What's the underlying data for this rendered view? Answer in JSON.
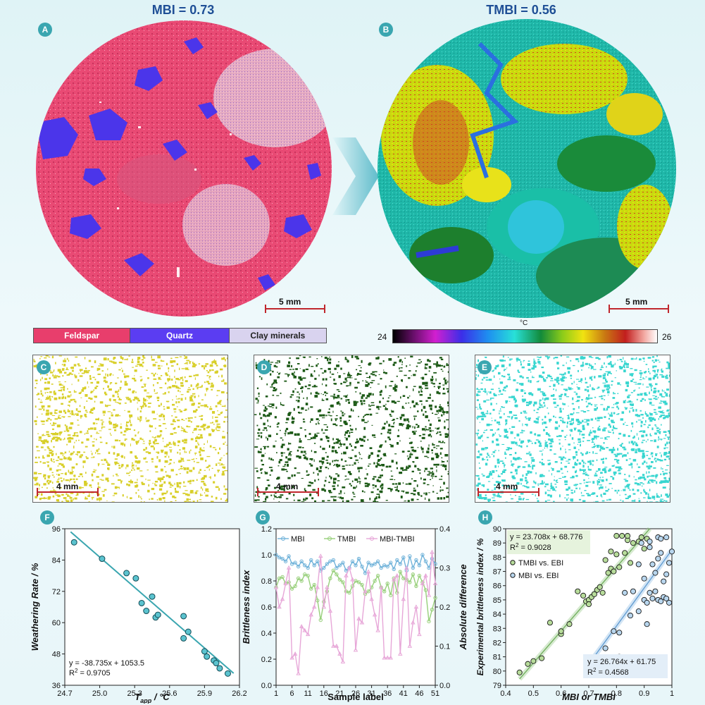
{
  "panelA": {
    "letter": "A",
    "title": "MBI = 0.73",
    "scale": "5 mm"
  },
  "panelB": {
    "letter": "B",
    "title": "TMBI = 0.56",
    "scale": "5 mm",
    "colorbar": {
      "unit": "°C",
      "min": "24",
      "max": "26"
    }
  },
  "legend": {
    "feldspar": "Feldspar",
    "quartz": "Quartz",
    "clay": "Clay minerals",
    "colors": {
      "feldspar": "#e83e6c",
      "quartz": "#5b3df2",
      "clay": "#d9d3ef"
    }
  },
  "panelC": {
    "letter": "C",
    "scale": "4 mm",
    "color": "#d8cf2a"
  },
  "panelD": {
    "letter": "D",
    "scale": "4 mm",
    "color": "#1d5a17"
  },
  "panelE": {
    "letter": "E",
    "scale": "4 mm",
    "color": "#39d6d0"
  },
  "panelF": {
    "letter": "F"
  },
  "panelG": {
    "letter": "G"
  },
  "panelH": {
    "letter": "H"
  },
  "chart_data": [
    {
      "id": "F",
      "type": "scatter",
      "xlabel": "T_app / °C",
      "ylabel": "Weathering Rate / %",
      "xlim": [
        24.7,
        26.2
      ],
      "ylim": [
        36,
        96
      ],
      "xticks": [
        "24.7",
        "25.0",
        "25.3",
        "25.6",
        "25.9",
        "26.2"
      ],
      "yticks": [
        "36",
        "48",
        "60",
        "72",
        "84",
        "96"
      ],
      "equation": "y = -38.735x + 1053.5",
      "r2_label": "R",
      "r2_value": "= 0.9705",
      "fit": {
        "slope": -38.735,
        "intercept": 1053.5
      },
      "points": [
        [
          24.78,
          90.8
        ],
        [
          25.02,
          84.5
        ],
        [
          25.23,
          79
        ],
        [
          25.31,
          77
        ],
        [
          25.36,
          67.5
        ],
        [
          25.4,
          64.5
        ],
        [
          25.45,
          70
        ],
        [
          25.48,
          62
        ],
        [
          25.5,
          63
        ],
        [
          25.72,
          62.5
        ],
        [
          25.72,
          54
        ],
        [
          25.76,
          56.5
        ],
        [
          25.9,
          49
        ],
        [
          25.92,
          47
        ],
        [
          25.98,
          45.5
        ],
        [
          26.0,
          44.5
        ],
        [
          26.03,
          42.5
        ],
        [
          26.1,
          40.5
        ]
      ]
    },
    {
      "id": "G",
      "type": "line",
      "xlabel": "Sample label",
      "ylabel": "Brittleness index",
      "y2label": "Absolute difference",
      "xlim": [
        1,
        51
      ],
      "ylim": [
        0,
        1.2
      ],
      "y2lim": [
        0,
        0.4
      ],
      "xticks": [
        "1",
        "6",
        "11",
        "16",
        "21",
        "26",
        "31",
        "36",
        "41",
        "46",
        "51"
      ],
      "yticks": [
        "0.0",
        "0.2",
        "0.4",
        "0.6",
        "0.8",
        "1.0",
        "1.2"
      ],
      "y2ticks": [
        "0.0",
        "0.1",
        "0.2",
        "0.3",
        "0.4"
      ],
      "series": [
        {
          "name": "MBI",
          "color": "#6fb2d9",
          "axis": "left",
          "values": [
            1.0,
            0.98,
            0.97,
            0.95,
            0.99,
            0.93,
            0.94,
            0.91,
            0.95,
            0.92,
            0.9,
            0.96,
            0.92,
            0.95,
            0.88,
            0.9,
            0.93,
            0.95,
            0.96,
            0.9,
            0.92,
            0.94,
            0.88,
            0.9,
            0.95,
            0.92,
            0.97,
            0.91,
            0.86,
            0.94,
            0.92,
            0.93,
            0.95,
            0.9,
            0.92,
            0.91,
            0.94,
            0.89,
            0.96,
            0.93,
            0.98,
            0.88,
            0.99,
            0.9,
            0.96,
            0.92,
            1.0,
            0.95,
            0.9,
            0.97,
            0.93
          ]
        },
        {
          "name": "TMBI",
          "color": "#97cf7a",
          "axis": "left",
          "values": [
            0.75,
            0.82,
            0.83,
            0.78,
            0.79,
            0.74,
            0.76,
            0.82,
            0.8,
            0.85,
            0.84,
            0.74,
            0.77,
            0.65,
            0.5,
            0.64,
            0.72,
            0.82,
            0.88,
            0.85,
            0.81,
            0.79,
            0.72,
            0.71,
            0.76,
            0.8,
            0.79,
            0.77,
            0.7,
            0.72,
            0.75,
            0.8,
            0.84,
            0.75,
            0.72,
            0.78,
            0.69,
            0.82,
            0.71,
            0.87,
            0.82,
            0.81,
            0.79,
            0.85,
            0.76,
            0.84,
            0.79,
            0.73,
            0.49,
            0.58,
            0.67
          ]
        },
        {
          "name": "MBI-TMBI",
          "color": "#e7a7d8",
          "axis": "right",
          "values": [
            0.25,
            0.2,
            0.22,
            0.26,
            0.3,
            0.07,
            0.08,
            0.03,
            0.15,
            0.14,
            0.13,
            0.18,
            0.2,
            0.25,
            0.33,
            0.2,
            0.25,
            0.19,
            0.1,
            0.1,
            0.08,
            0.06,
            0.28,
            0.3,
            0.27,
            0.09,
            0.17,
            0.16,
            0.24,
            0.29,
            0.22,
            0.18,
            0.14,
            0.25,
            0.07,
            0.07,
            0.07,
            0.27,
            0.28,
            0.08,
            0.22,
            0.3,
            0.1,
            0.16,
            0.2,
            0.13,
            0.26,
            0.28,
            0.23,
            0.34,
            0.26
          ]
        }
      ]
    },
    {
      "id": "H",
      "type": "scatter",
      "xlabel": "MBI or TMBI",
      "ylabel": "Experimental brittleness index / %",
      "xlim": [
        0.4,
        1.0
      ],
      "ylim": [
        79,
        90
      ],
      "xticks": [
        "0.4",
        "0.5",
        "0.6",
        "0.7",
        "0.8",
        "0.9",
        "1"
      ],
      "yticks": [
        "79",
        "80",
        "81",
        "82",
        "83",
        "84",
        "85",
        "86",
        "87",
        "88",
        "89",
        "90"
      ],
      "series": [
        {
          "name": "TMBI vs. EBI",
          "fill": "#b7dc9a",
          "equation": "y = 23.708x + 68.776",
          "r2": "= 0.9028",
          "fit": {
            "slope": 23.708,
            "intercept": 68.776
          },
          "points": [
            [
              0.45,
              79.9
            ],
            [
              0.48,
              80.5
            ],
            [
              0.5,
              80.7
            ],
            [
              0.53,
              80.9
            ],
            [
              0.56,
              83.4
            ],
            [
              0.6,
              82.6
            ],
            [
              0.6,
              82.8
            ],
            [
              0.63,
              83.3
            ],
            [
              0.66,
              85.6
            ],
            [
              0.68,
              85.3
            ],
            [
              0.69,
              84.9
            ],
            [
              0.7,
              85
            ],
            [
              0.7,
              84.7
            ],
            [
              0.71,
              85.2
            ],
            [
              0.72,
              85.4
            ],
            [
              0.73,
              85.7
            ],
            [
              0.74,
              85.9
            ],
            [
              0.75,
              85.5
            ],
            [
              0.76,
              87.8
            ],
            [
              0.77,
              86.9
            ],
            [
              0.78,
              87.2
            ],
            [
              0.78,
              88.4
            ],
            [
              0.79,
              87
            ],
            [
              0.8,
              89.5
            ],
            [
              0.8,
              88.2
            ],
            [
              0.81,
              87.3
            ],
            [
              0.82,
              89.5
            ],
            [
              0.83,
              88.3
            ],
            [
              0.84,
              89.2
            ],
            [
              0.85,
              87.6
            ],
            [
              0.86,
              89
            ],
            [
              0.88,
              89.1
            ],
            [
              0.89,
              89.4
            ],
            [
              0.9,
              88.6
            ],
            [
              0.91,
              89.3
            ],
            [
              0.84,
              89.5
            ]
          ]
        },
        {
          "name": "MBI vs. EBI",
          "fill": "#b8d6ee",
          "equation": "y = 26.764x + 61.75",
          "r2": "= 0.4568",
          "fit": {
            "slope": 26.764,
            "intercept": 61.75
          },
          "points": [
            [
              0.69,
              80.4
            ],
            [
              0.76,
              81.6
            ],
            [
              0.79,
              82.8
            ],
            [
              0.81,
              82.7
            ],
            [
              0.81,
              81
            ],
            [
              0.83,
              85.5
            ],
            [
              0.85,
              83.9
            ],
            [
              0.86,
              85.6
            ],
            [
              0.88,
              84.2
            ],
            [
              0.88,
              87.5
            ],
            [
              0.89,
              89
            ],
            [
              0.9,
              85
            ],
            [
              0.9,
              86.5
            ],
            [
              0.91,
              84.8
            ],
            [
              0.91,
              83.3
            ],
            [
              0.92,
              88.7
            ],
            [
              0.92,
              85.5
            ],
            [
              0.93,
              87.5
            ],
            [
              0.93,
              85.1
            ],
            [
              0.94,
              86.9
            ],
            [
              0.94,
              85.6
            ],
            [
              0.95,
              89.4
            ],
            [
              0.95,
              87.9
            ],
            [
              0.95,
              85
            ],
            [
              0.96,
              89.3
            ],
            [
              0.96,
              88.3
            ],
            [
              0.96,
              84.9
            ],
            [
              0.97,
              86.3
            ],
            [
              0.97,
              85.2
            ],
            [
              0.98,
              89.4
            ],
            [
              0.98,
              86.8
            ],
            [
              0.98,
              85.1
            ],
            [
              0.99,
              87.6
            ],
            [
              0.99,
              84.8
            ],
            [
              1.0,
              88.4
            ],
            [
              0.92,
              89.1
            ]
          ]
        }
      ]
    }
  ]
}
